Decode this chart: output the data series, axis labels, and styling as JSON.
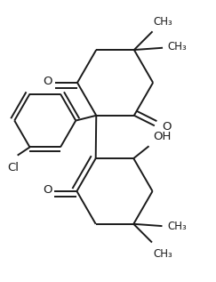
{
  "figsize": [
    2.43,
    3.17
  ],
  "dpi": 100,
  "bg_color": "#ffffff",
  "line_color": "#1a1a1a",
  "line_width": 1.4,
  "font_size": 9.5,
  "xlim": [
    -0.6,
    1.5
  ],
  "ylim": [
    -1.4,
    1.3
  ]
}
